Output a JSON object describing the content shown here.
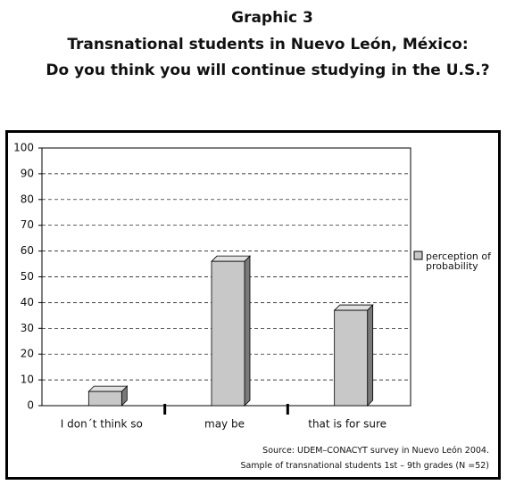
{
  "chart_data": {
    "type": "bar",
    "title": "Graphic 3",
    "subtitle": [
      "Transnational students in Nuevo León, México:",
      "Do you think you will continue studying in the U.S.?"
    ],
    "categories": [
      "I don´t think so",
      "may be",
      "that is for sure"
    ],
    "series": [
      {
        "name": "perception of probability",
        "color": "#c8c8c8",
        "values": [
          5.5,
          56,
          37
        ]
      }
    ],
    "ylim": [
      0,
      100
    ],
    "yticks": [
      0,
      10,
      20,
      30,
      40,
      50,
      60,
      70,
      80,
      90,
      100
    ],
    "grid": true,
    "annotations": [
      "Source: UDEM–CONACYT survey in Nuevo León 2004.",
      "Sample of transnational students 1st – 9th grades (N =52)"
    ]
  }
}
